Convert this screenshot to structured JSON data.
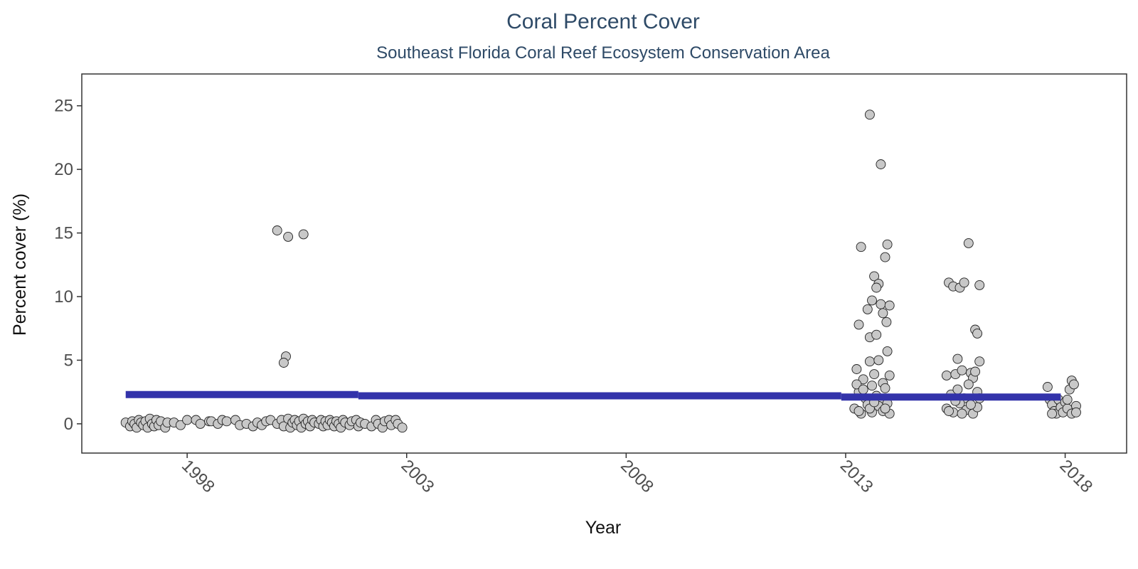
{
  "chart_data": {
    "type": "scatter",
    "title": "Coral Percent Cover",
    "subtitle": "Southeast Florida Coral Reef Ecosystem Conservation Area",
    "xlabel": "Year",
    "ylabel": "Percent cover (%)",
    "xlim": [
      1995.6,
      2019.4
    ],
    "ylim": [
      -2.3,
      27.5
    ],
    "x_ticks": [
      1998,
      2003,
      2008,
      2013,
      2018
    ],
    "y_ticks": [
      0,
      5,
      10,
      15,
      20,
      25
    ],
    "grid": false,
    "legend": "none",
    "colors": {
      "point_fill": "#c8c8c8",
      "point_edge": "#222222",
      "trend": "#3333aa",
      "text": "#2e4a67"
    },
    "trend_segments": [
      {
        "x": [
          1996.6,
          2001.9
        ],
        "y": [
          2.3,
          2.3
        ]
      },
      {
        "x": [
          2001.9,
          2012.9
        ],
        "y": [
          2.2,
          2.2
        ]
      },
      {
        "x": [
          2012.9,
          2017.9
        ],
        "y": [
          2.1,
          2.1
        ]
      }
    ],
    "points": [
      [
        1996.6,
        0.1
      ],
      [
        1996.7,
        -0.2
      ],
      [
        1996.75,
        0.2
      ],
      [
        1996.8,
        0.0
      ],
      [
        1996.85,
        -0.3
      ],
      [
        1996.9,
        0.3
      ],
      [
        1996.95,
        0.1
      ],
      [
        1997.0,
        -0.1
      ],
      [
        1997.05,
        0.2
      ],
      [
        1997.1,
        -0.3
      ],
      [
        1997.15,
        0.4
      ],
      [
        1997.2,
        0.0
      ],
      [
        1997.25,
        -0.2
      ],
      [
        1997.3,
        0.3
      ],
      [
        1997.35,
        -0.1
      ],
      [
        1997.4,
        0.2
      ],
      [
        1997.5,
        -0.3
      ],
      [
        1997.55,
        0.1
      ],
      [
        1997.7,
        0.1
      ],
      [
        1997.85,
        -0.1
      ],
      [
        1998.0,
        0.3
      ],
      [
        1998.2,
        0.3
      ],
      [
        1998.3,
        0.0
      ],
      [
        1998.5,
        0.2
      ],
      [
        1998.55,
        0.2
      ],
      [
        1998.7,
        0.0
      ],
      [
        1998.8,
        0.3
      ],
      [
        1998.9,
        0.2
      ],
      [
        1999.1,
        0.3
      ],
      [
        1999.2,
        -0.1
      ],
      [
        1999.35,
        0.0
      ],
      [
        1999.5,
        -0.2
      ],
      [
        1999.6,
        0.1
      ],
      [
        1999.7,
        -0.1
      ],
      [
        1999.8,
        0.2
      ],
      [
        1999.9,
        0.3
      ],
      [
        2000.05,
        0.0
      ],
      [
        2000.15,
        0.3
      ],
      [
        2000.2,
        -0.2
      ],
      [
        2000.3,
        0.4
      ],
      [
        2000.35,
        -0.3
      ],
      [
        2000.4,
        0.1
      ],
      [
        2000.45,
        0.3
      ],
      [
        2000.5,
        -0.1
      ],
      [
        2000.55,
        0.2
      ],
      [
        2000.6,
        -0.3
      ],
      [
        2000.65,
        0.4
      ],
      [
        2000.7,
        0.0
      ],
      [
        2000.75,
        0.2
      ],
      [
        2000.8,
        -0.2
      ],
      [
        2000.85,
        0.3
      ],
      [
        2000.9,
        0.1
      ],
      [
        2001.0,
        0.0
      ],
      [
        2001.05,
        0.3
      ],
      [
        2001.1,
        -0.2
      ],
      [
        2001.15,
        0.2
      ],
      [
        2001.2,
        -0.1
      ],
      [
        2001.25,
        0.3
      ],
      [
        2001.3,
        0.1
      ],
      [
        2001.35,
        -0.2
      ],
      [
        2001.4,
        0.2
      ],
      [
        2001.45,
        0.0
      ],
      [
        2001.5,
        -0.3
      ],
      [
        2001.55,
        0.3
      ],
      [
        2001.6,
        0.1
      ],
      [
        2001.7,
        -0.1
      ],
      [
        2001.75,
        0.2
      ],
      [
        2001.85,
        0.3
      ],
      [
        2001.9,
        -0.2
      ],
      [
        2001.95,
        0.1
      ],
      [
        2002.05,
        0.0
      ],
      [
        2002.2,
        -0.2
      ],
      [
        2002.3,
        0.3
      ],
      [
        2002.35,
        0.0
      ],
      [
        2002.45,
        -0.3
      ],
      [
        2002.5,
        0.2
      ],
      [
        2002.6,
        0.3
      ],
      [
        2002.65,
        -0.1
      ],
      [
        2002.75,
        0.3
      ],
      [
        2002.8,
        0.0
      ],
      [
        2002.9,
        -0.3
      ],
      [
        2000.05,
        15.2
      ],
      [
        2000.3,
        14.7
      ],
      [
        2000.65,
        14.9
      ],
      [
        2000.25,
        5.3
      ],
      [
        2000.2,
        4.8
      ],
      [
        2013.35,
        13.9
      ],
      [
        2013.3,
        7.8
      ],
      [
        2013.5,
        9.0
      ],
      [
        2013.55,
        6.8
      ],
      [
        2013.6,
        9.7
      ],
      [
        2013.65,
        11.6
      ],
      [
        2013.7,
        7.0
      ],
      [
        2013.75,
        11.0
      ],
      [
        2013.8,
        9.4
      ],
      [
        2013.85,
        8.7
      ],
      [
        2013.9,
        13.1
      ],
      [
        2013.95,
        14.1
      ],
      [
        2013.93,
        8.0
      ],
      [
        2014.0,
        9.3
      ],
      [
        2013.7,
        10.7
      ],
      [
        2013.55,
        24.3
      ],
      [
        2013.8,
        20.4
      ],
      [
        2013.25,
        4.3
      ],
      [
        2013.4,
        3.5
      ],
      [
        2013.55,
        4.9
      ],
      [
        2013.65,
        3.9
      ],
      [
        2013.75,
        5.0
      ],
      [
        2013.85,
        3.2
      ],
      [
        2013.95,
        5.7
      ],
      [
        2014.0,
        3.8
      ],
      [
        2013.3,
        2.5
      ],
      [
        2013.45,
        2.0
      ],
      [
        2013.6,
        3.0
      ],
      [
        2013.7,
        2.2
      ],
      [
        2013.8,
        1.8
      ],
      [
        2013.9,
        2.8
      ],
      [
        2013.2,
        1.2
      ],
      [
        2013.35,
        0.8
      ],
      [
        2013.5,
        1.5
      ],
      [
        2013.6,
        0.9
      ],
      [
        2013.75,
        1.4
      ],
      [
        2013.85,
        1.0
      ],
      [
        2013.95,
        1.6
      ],
      [
        2014.0,
        0.8
      ],
      [
        2013.3,
        1.0
      ],
      [
        2013.55,
        1.2
      ],
      [
        2013.25,
        3.1
      ],
      [
        2013.65,
        1.7
      ],
      [
        2013.9,
        1.2
      ],
      [
        2013.4,
        2.7
      ],
      [
        2015.35,
        11.1
      ],
      [
        2015.45,
        10.8
      ],
      [
        2015.6,
        10.7
      ],
      [
        2015.7,
        11.1
      ],
      [
        2015.8,
        14.2
      ],
      [
        2016.05,
        10.9
      ],
      [
        2015.95,
        7.4
      ],
      [
        2016.0,
        7.1
      ],
      [
        2015.55,
        5.1
      ],
      [
        2016.05,
        4.9
      ],
      [
        2015.3,
        3.8
      ],
      [
        2015.5,
        3.9
      ],
      [
        2015.65,
        4.2
      ],
      [
        2015.85,
        4.0
      ],
      [
        2015.9,
        3.6
      ],
      [
        2015.95,
        4.1
      ],
      [
        2015.4,
        2.3
      ],
      [
        2015.55,
        2.7
      ],
      [
        2015.7,
        2.0
      ],
      [
        2015.8,
        3.1
      ],
      [
        2016.0,
        2.5
      ],
      [
        2016.05,
        2.0
      ],
      [
        2015.3,
        1.2
      ],
      [
        2015.45,
        0.9
      ],
      [
        2015.6,
        1.6
      ],
      [
        2015.75,
        1.1
      ],
      [
        2015.9,
        0.8
      ],
      [
        2016.0,
        1.3
      ],
      [
        2015.35,
        1.0
      ],
      [
        2015.65,
        0.8
      ],
      [
        2015.85,
        1.5
      ],
      [
        2015.5,
        1.8
      ],
      [
        2017.6,
        2.9
      ],
      [
        2017.65,
        1.9
      ],
      [
        2017.7,
        1.5
      ],
      [
        2017.75,
        1.0
      ],
      [
        2017.8,
        0.8
      ],
      [
        2017.85,
        1.9
      ],
      [
        2017.9,
        1.3
      ],
      [
        2017.95,
        0.9
      ],
      [
        2018.0,
        1.7
      ],
      [
        2018.05,
        1.2
      ],
      [
        2018.1,
        2.7
      ],
      [
        2018.15,
        3.4
      ],
      [
        2018.2,
        3.1
      ],
      [
        2018.25,
        1.4
      ],
      [
        2018.05,
        1.9
      ],
      [
        2018.15,
        0.8
      ],
      [
        2017.7,
        0.8
      ],
      [
        2018.25,
        0.9
      ]
    ]
  }
}
